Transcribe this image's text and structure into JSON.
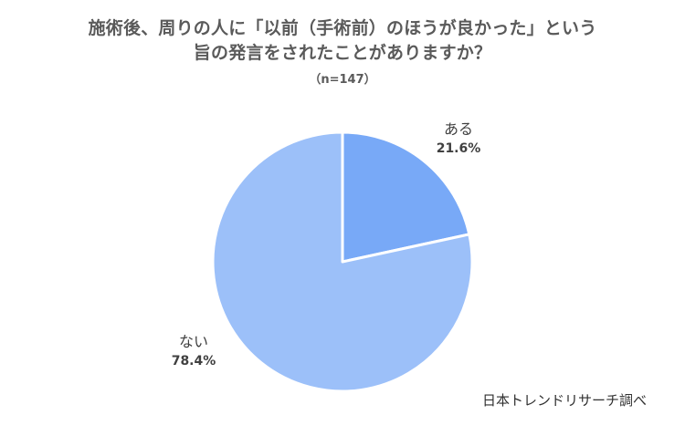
{
  "chart_data": {
    "type": "pie",
    "title_lines": [
      "施術後、周りの人に「以前（手術前）のほうが良かった」という",
      "旨の発言をされたことがありますか？"
    ],
    "subtitle": "（n=147）",
    "slices": [
      {
        "label": "ある",
        "value": 21.6,
        "value_label": "21.6%",
        "color": "#78a9f7"
      },
      {
        "label": "ない",
        "value": 78.4,
        "value_label": "78.4%",
        "color": "#9cc0f9"
      }
    ],
    "start_angle": "12 o'clock",
    "direction": "clockwise",
    "slice_border_color": "#ffffff"
  },
  "source": "日本トレンドリサーチ調べ"
}
